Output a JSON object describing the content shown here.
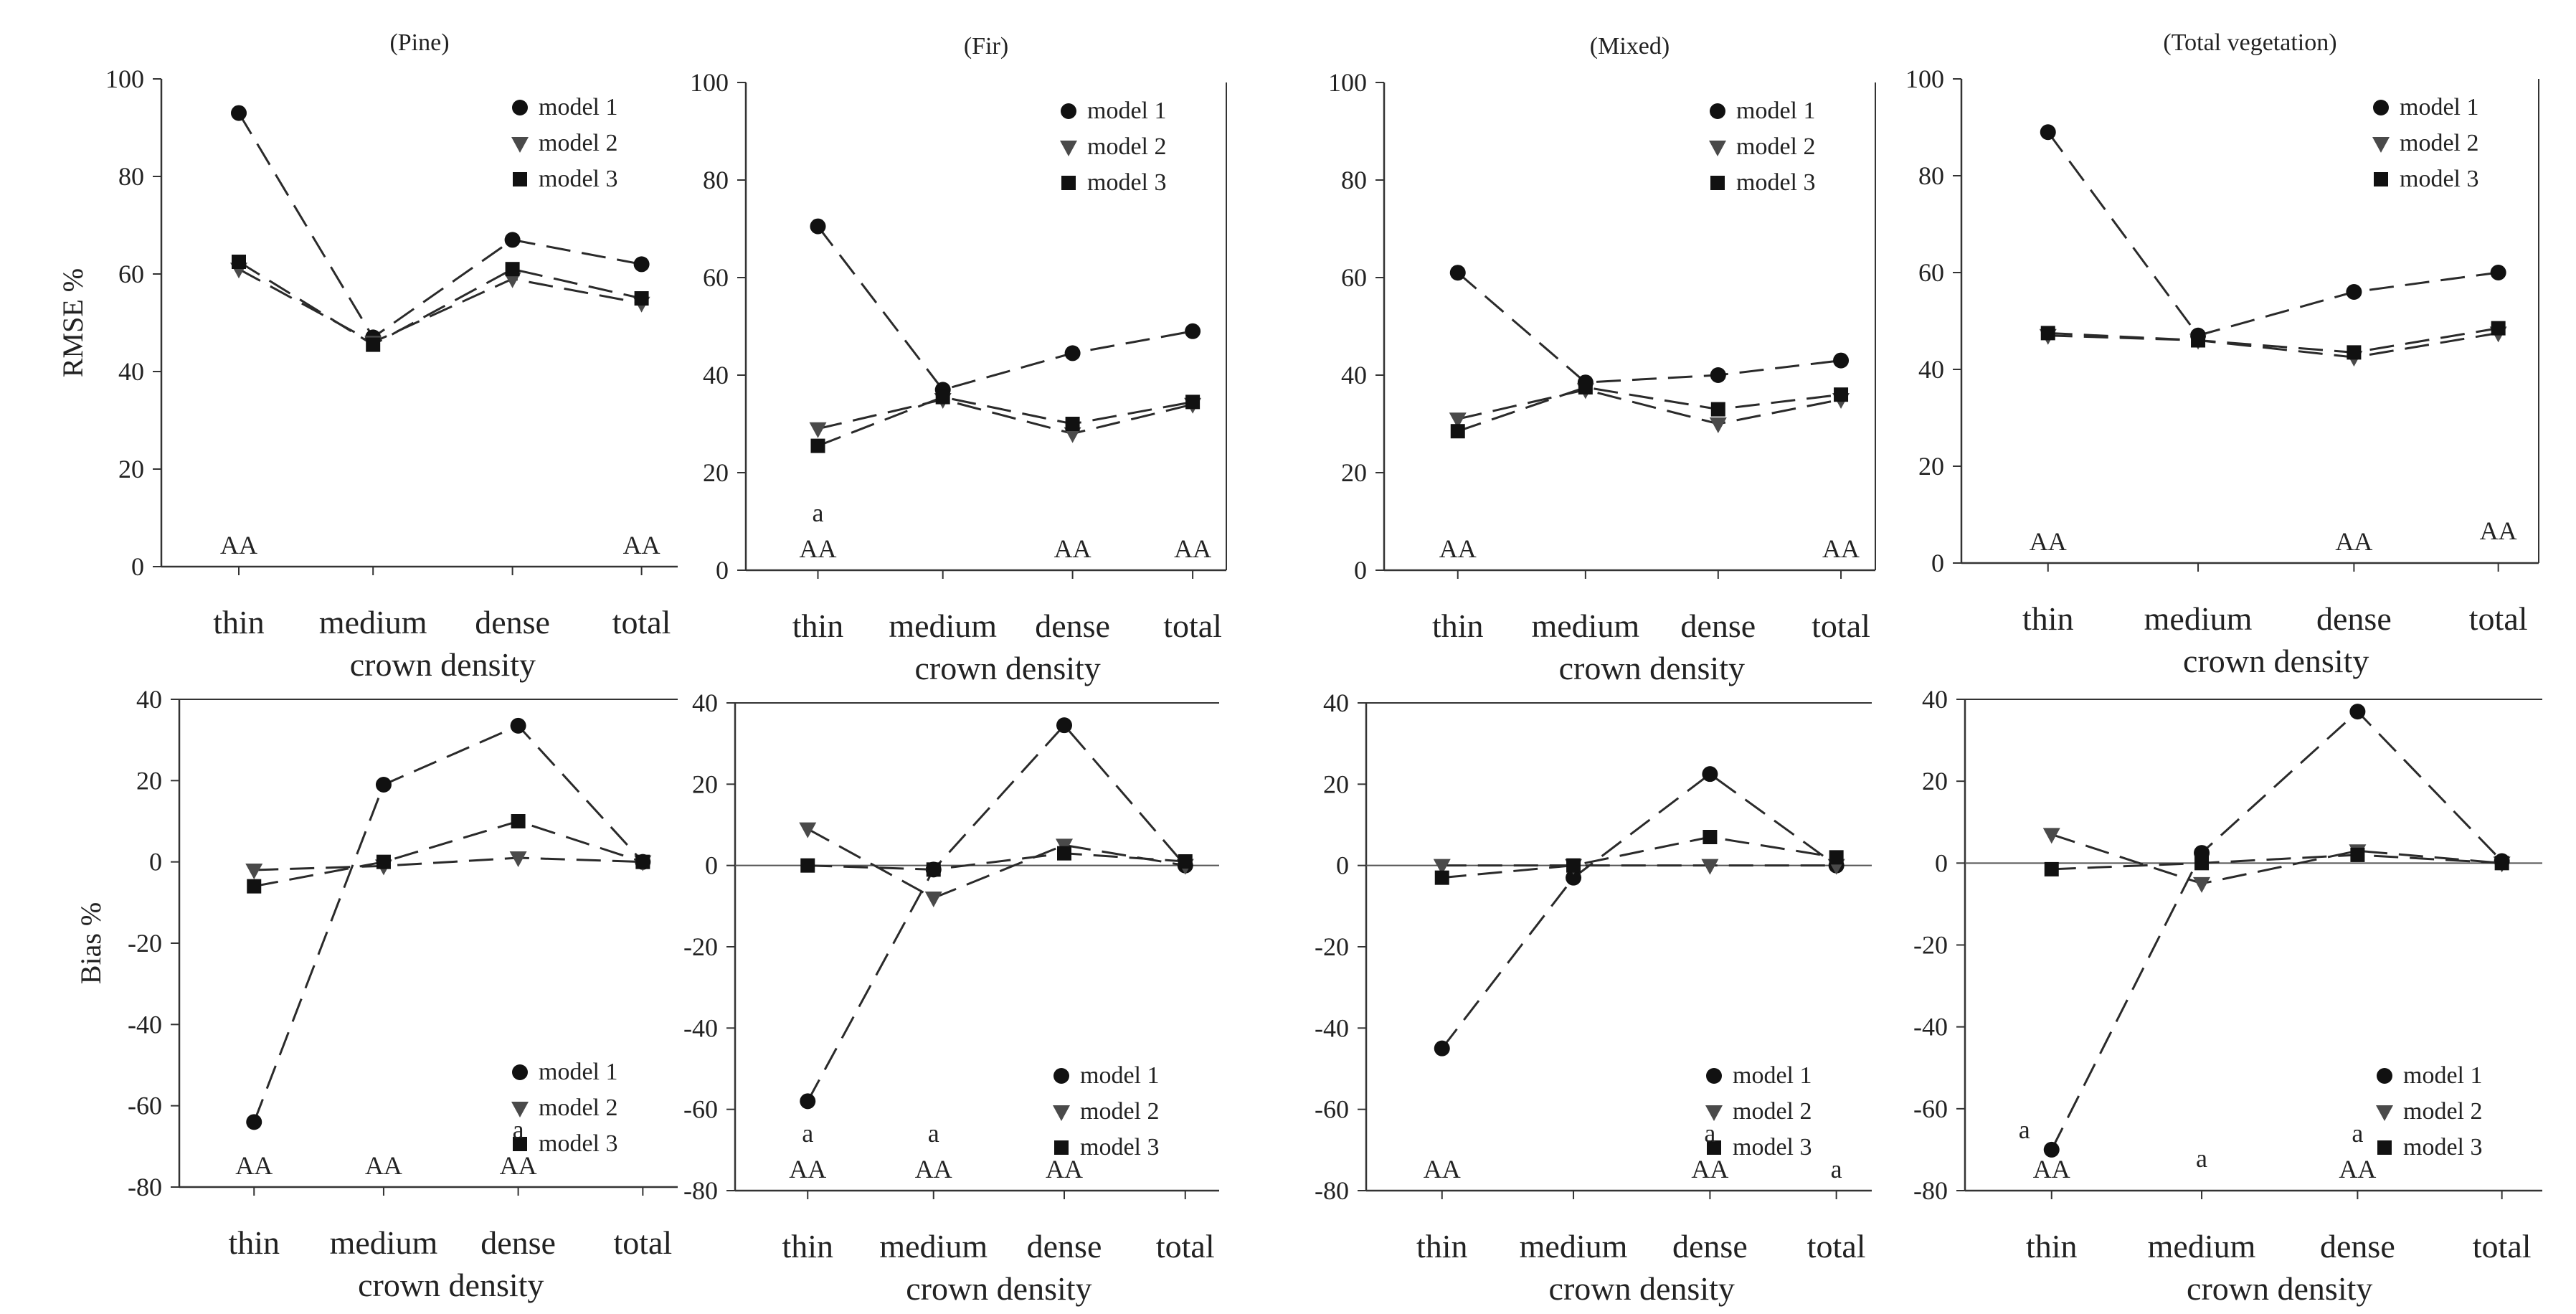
{
  "figure": {
    "line_color": "#2a2a2a",
    "marker_color": "#111111",
    "categories": [
      "thin",
      "medium",
      "dense",
      "total"
    ],
    "xlabel": "crown density",
    "series_names": [
      "model 1",
      "model 2",
      "model 3"
    ],
    "series_markers": [
      "circle",
      "triangle-down",
      "square"
    ]
  },
  "chart_data": [
    {
      "id": "rmse-pine",
      "type": "line",
      "title": "(Pine)",
      "ylabel": "RMSE %",
      "categories": [
        "thin",
        "medium",
        "dense",
        "total"
      ],
      "ylim": [
        0,
        100
      ],
      "yticks": [
        0,
        20,
        40,
        60,
        80,
        100
      ],
      "zero_line": false,
      "legend_position": "top-right",
      "series": [
        {
          "name": "model 1",
          "marker": "circle",
          "values": [
            93,
            47,
            67,
            62
          ]
        },
        {
          "name": "model 2",
          "marker": "triangle-down",
          "values": [
            61,
            46,
            59,
            54
          ]
        },
        {
          "name": "model 3",
          "marker": "square",
          "values": [
            62.5,
            45.5,
            61,
            55
          ]
        }
      ],
      "annotations": [
        {
          "category": "thin",
          "text": "AA",
          "level": 0
        },
        {
          "category": "total",
          "text": "AA",
          "level": 0
        }
      ]
    },
    {
      "id": "rmse-fir",
      "type": "line",
      "title": "(Fir)",
      "ylabel": "",
      "categories": [
        "thin",
        "medium",
        "dense",
        "total"
      ],
      "ylim": [
        0,
        100
      ],
      "yticks": [
        0,
        20,
        40,
        60,
        80,
        100
      ],
      "zero_line": false,
      "legend_position": "top-right",
      "series": [
        {
          "name": "model 1",
          "marker": "circle",
          "values": [
            70.5,
            37,
            44.5,
            49
          ]
        },
        {
          "name": "model 2",
          "marker": "triangle-down",
          "values": [
            29,
            35,
            28,
            34
          ]
        },
        {
          "name": "model 3",
          "marker": "square",
          "values": [
            25.5,
            35.5,
            30,
            34.5
          ]
        }
      ],
      "annotations": [
        {
          "category": "thin",
          "text": "a",
          "level": 1
        },
        {
          "category": "thin",
          "text": "AA",
          "level": 0
        },
        {
          "category": "dense",
          "text": "AA",
          "level": 0
        },
        {
          "category": "total",
          "text": "AA",
          "level": 0
        }
      ]
    },
    {
      "id": "rmse-mixed",
      "type": "line",
      "title": "(Mixed)",
      "ylabel": "",
      "categories": [
        "thin",
        "medium",
        "dense",
        "total"
      ],
      "ylim": [
        0,
        100
      ],
      "yticks": [
        0,
        20,
        40,
        60,
        80,
        100
      ],
      "zero_line": false,
      "legend_position": "top-right",
      "series": [
        {
          "name": "model 1",
          "marker": "circle",
          "values": [
            61,
            38.5,
            40,
            43
          ]
        },
        {
          "name": "model 2",
          "marker": "triangle-down",
          "values": [
            31,
            37,
            30,
            35
          ]
        },
        {
          "name": "model 3",
          "marker": "square",
          "values": [
            28.5,
            37.5,
            33,
            36
          ]
        }
      ],
      "annotations": [
        {
          "category": "thin",
          "text": "AA",
          "level": 0
        },
        {
          "category": "total",
          "text": "AA",
          "level": 0
        }
      ]
    },
    {
      "id": "rmse-total",
      "type": "line",
      "title": "(Total vegetation)",
      "ylabel": "",
      "categories": [
        "thin",
        "medium",
        "dense",
        "total"
      ],
      "ylim": [
        0,
        100
      ],
      "yticks": [
        0,
        20,
        40,
        60,
        80,
        100
      ],
      "zero_line": false,
      "legend_position": "top-right",
      "series": [
        {
          "name": "model 1",
          "marker": "circle",
          "values": [
            89,
            47,
            56,
            60
          ]
        },
        {
          "name": "model 2",
          "marker": "triangle-down",
          "values": [
            47,
            46,
            42.5,
            47.5
          ]
        },
        {
          "name": "model 3",
          "marker": "square",
          "values": [
            47.5,
            46,
            43.5,
            48.5
          ]
        }
      ],
      "annotations": [
        {
          "category": "thin",
          "text": "AA",
          "level": 0
        },
        {
          "category": "dense",
          "text": "AA",
          "level": 0
        },
        {
          "category": "total",
          "text": "AA",
          "level": 0.3
        }
      ]
    },
    {
      "id": "bias-pine",
      "type": "line",
      "title": "",
      "ylabel": "Bias %",
      "categories": [
        "thin",
        "medium",
        "dense",
        "total"
      ],
      "ylim": [
        -80,
        40
      ],
      "yticks": [
        -80,
        -60,
        -40,
        -20,
        0,
        20,
        40
      ],
      "zero_line": false,
      "legend_position": "bottom-right",
      "series": [
        {
          "name": "model 1",
          "marker": "circle",
          "values": [
            -64,
            19,
            33.5,
            0
          ]
        },
        {
          "name": "model 2",
          "marker": "triangle-down",
          "values": [
            -2,
            -1,
            1,
            0
          ]
        },
        {
          "name": "model 3",
          "marker": "square",
          "values": [
            -6,
            0,
            10,
            0
          ]
        }
      ],
      "annotations": [
        {
          "category": "thin",
          "text": "AA",
          "level": 0
        },
        {
          "category": "medium",
          "text": "AA",
          "level": 0
        },
        {
          "category": "dense",
          "text": "a",
          "level": 1
        },
        {
          "category": "dense",
          "text": "AA",
          "level": 0
        }
      ]
    },
    {
      "id": "bias-fir",
      "type": "line",
      "title": "",
      "ylabel": "",
      "categories": [
        "thin",
        "medium",
        "dense",
        "total"
      ],
      "ylim": [
        -80,
        40
      ],
      "yticks": [
        -80,
        -60,
        -40,
        -20,
        0,
        20,
        40
      ],
      "zero_line": true,
      "legend_position": "bottom-right",
      "series": [
        {
          "name": "model 1",
          "marker": "circle",
          "values": [
            -58,
            -1,
            34.5,
            0
          ]
        },
        {
          "name": "model 2",
          "marker": "triangle-down",
          "values": [
            9,
            -8,
            5,
            0
          ]
        },
        {
          "name": "model 3",
          "marker": "square",
          "values": [
            0,
            -1,
            3,
            1
          ]
        }
      ],
      "annotations": [
        {
          "category": "thin",
          "text": "a",
          "level": 1
        },
        {
          "category": "thin",
          "text": "AA",
          "level": 0
        },
        {
          "category": "medium",
          "text": "a",
          "level": 1
        },
        {
          "category": "medium",
          "text": "AA",
          "level": 0
        },
        {
          "category": "dense",
          "text": "AA",
          "level": 0
        }
      ]
    },
    {
      "id": "bias-mixed",
      "type": "line",
      "title": "",
      "ylabel": "",
      "categories": [
        "thin",
        "medium",
        "dense",
        "total"
      ],
      "ylim": [
        -80,
        40
      ],
      "yticks": [
        -80,
        -60,
        -40,
        -20,
        0,
        20,
        40
      ],
      "zero_line": true,
      "legend_position": "bottom-right",
      "series": [
        {
          "name": "model 1",
          "marker": "circle",
          "values": [
            -45,
            -3,
            22.5,
            0
          ]
        },
        {
          "name": "model 2",
          "marker": "triangle-down",
          "values": [
            0,
            0,
            0,
            0
          ]
        },
        {
          "name": "model 3",
          "marker": "square",
          "values": [
            -3,
            0,
            7,
            2
          ]
        }
      ],
      "annotations": [
        {
          "category": "thin",
          "text": "AA",
          "level": 0
        },
        {
          "category": "dense",
          "text": "a",
          "level": 1
        },
        {
          "category": "dense",
          "text": "AA",
          "level": 0
        },
        {
          "category": "total",
          "text": "a",
          "level": 0
        }
      ]
    },
    {
      "id": "bias-total",
      "type": "line",
      "title": "",
      "ylabel": "",
      "categories": [
        "thin",
        "medium",
        "dense",
        "total"
      ],
      "ylim": [
        -80,
        40
      ],
      "yticks": [
        -80,
        -60,
        -40,
        -20,
        0,
        20,
        40
      ],
      "zero_line": true,
      "legend_position": "bottom-right",
      "series": [
        {
          "name": "model 1",
          "marker": "circle",
          "values": [
            -70,
            2.5,
            37,
            0.5
          ]
        },
        {
          "name": "model 2",
          "marker": "triangle-down",
          "values": [
            7,
            -5,
            3,
            0
          ]
        },
        {
          "name": "model 3",
          "marker": "square",
          "values": [
            -1.5,
            0,
            2,
            0
          ]
        }
      ],
      "annotations": [
        {
          "category": "thin",
          "text": "a",
          "level": 1.1,
          "side": "left"
        },
        {
          "category": "thin",
          "text": "AA",
          "level": 0
        },
        {
          "category": "medium",
          "text": "a",
          "level": 0.3
        },
        {
          "category": "dense",
          "text": "a",
          "level": 1
        },
        {
          "category": "dense",
          "text": "AA",
          "level": 0
        }
      ]
    }
  ]
}
